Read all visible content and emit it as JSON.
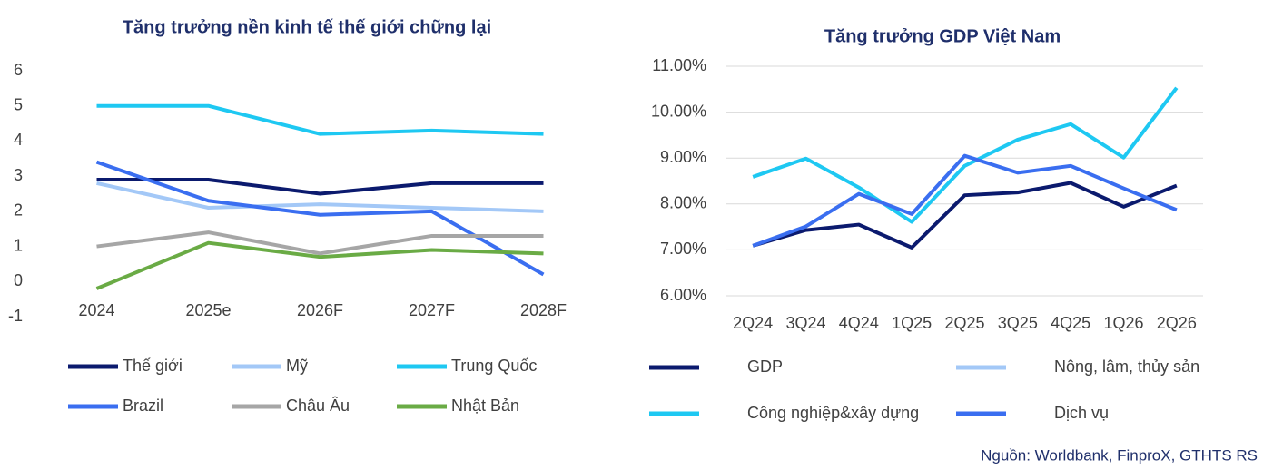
{
  "chart_data": [
    {
      "type": "line",
      "title": "Tăng trưởng nền kinh tế thế giới chững lại",
      "categories": [
        "2024",
        "2025e",
        "2026F",
        "2027F",
        "2028F"
      ],
      "ylim": [
        -1,
        6
      ],
      "yticks": [
        -1,
        0,
        1,
        2,
        3,
        4,
        5,
        6
      ],
      "grid": false,
      "series": [
        {
          "name": "Thế giới",
          "color": "#0b1a6e",
          "values": [
            2.9,
            2.9,
            2.5,
            2.8,
            2.8
          ]
        },
        {
          "name": "Mỹ",
          "color": "#a3c8f7",
          "values": [
            2.8,
            2.1,
            2.2,
            2.1,
            2.0
          ]
        },
        {
          "name": "Trung Quốc",
          "color": "#1ec8f2",
          "values": [
            5.0,
            5.0,
            4.2,
            4.3,
            4.2
          ]
        },
        {
          "name": "Brazil",
          "color": "#3a6ef0",
          "values": [
            3.4,
            2.3,
            1.9,
            2.0,
            0.2
          ]
        },
        {
          "name": "Châu Âu",
          "color": "#a6a6a6",
          "values": [
            1.0,
            1.4,
            0.8,
            1.3,
            1.3
          ]
        },
        {
          "name": "Nhật Bản",
          "color": "#6aab45",
          "values": [
            -0.2,
            1.1,
            0.7,
            0.9,
            0.8
          ]
        }
      ]
    },
    {
      "type": "line",
      "title": "Tăng trưởng GDP Việt Nam",
      "categories": [
        "2Q24",
        "3Q24",
        "4Q24",
        "1Q25",
        "2Q25",
        "3Q25",
        "4Q25",
        "1Q26",
        "2Q26"
      ],
      "ylim": [
        6,
        11
      ],
      "yticks": [
        {
          "value": 6,
          "label": "6.00%"
        },
        {
          "value": 7,
          "label": "7.00%"
        },
        {
          "value": 8,
          "label": "8.00%"
        },
        {
          "value": 9,
          "label": "9.00%"
        },
        {
          "value": 10,
          "label": "10.00%"
        },
        {
          "value": 11,
          "label": "11.00%"
        }
      ],
      "grid": true,
      "series": [
        {
          "name": "GDP",
          "color": "#0b1a6e",
          "values": [
            7.09,
            7.43,
            7.55,
            7.05,
            8.19,
            8.25,
            8.46,
            7.94,
            8.4
          ]
        },
        {
          "name": "Nông, lâm, thủy sản",
          "color": "#a3c8f7",
          "values": [
            null,
            null,
            null,
            null,
            null,
            null,
            null,
            null,
            null
          ]
        },
        {
          "name": "Công nghiệp&xây dựng",
          "color": "#1ec8f2",
          "values": [
            8.59,
            8.99,
            8.36,
            7.61,
            8.83,
            9.4,
            9.74,
            9.01,
            10.53
          ]
        },
        {
          "name": "Dịch vụ",
          "color": "#3a6ef0",
          "values": [
            7.09,
            7.51,
            8.22,
            7.78,
            9.05,
            8.68,
            8.83,
            8.34,
            7.87
          ]
        }
      ]
    }
  ],
  "source": "Nguồn: Worldbank, FinproX, GTHTS RS"
}
